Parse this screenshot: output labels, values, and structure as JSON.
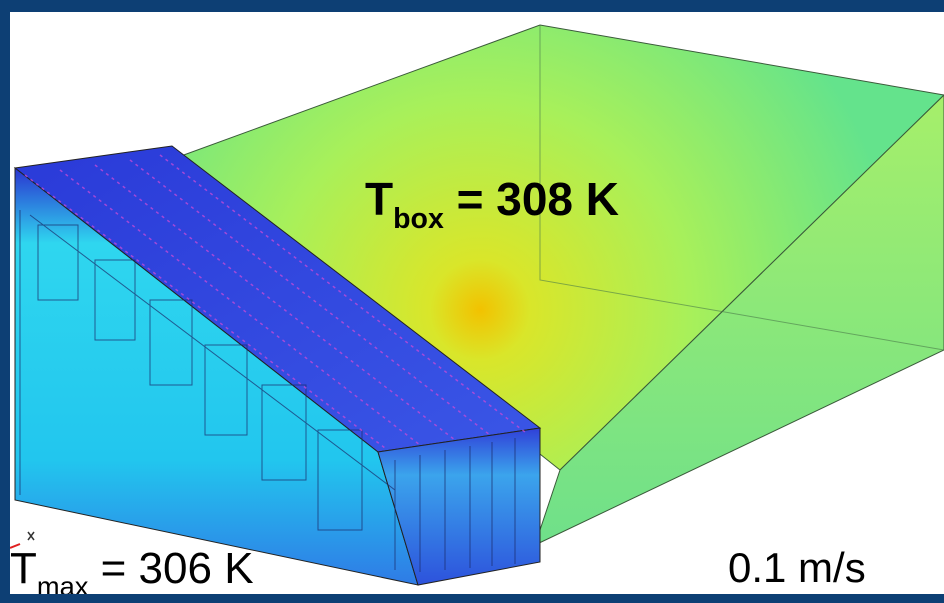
{
  "labels": {
    "box": {
      "symbol": "T",
      "subscript": "box",
      "text": " = 308 K"
    },
    "max": {
      "symbol": "T",
      "subscript": "max",
      "text": " = 306 K"
    },
    "speed": "0.1 m/s"
  }
}
